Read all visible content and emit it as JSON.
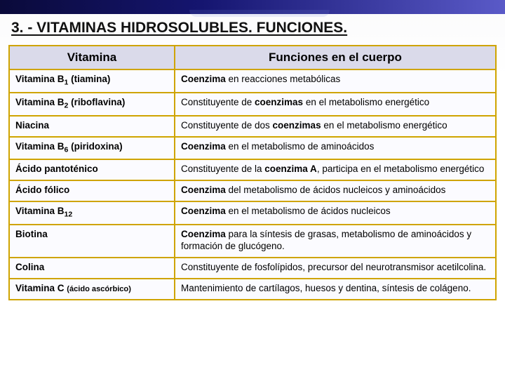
{
  "header": {
    "title": "3. - VITAMINAS HIDROSOLUBLES. FUNCIONES."
  },
  "table": {
    "columns": {
      "vitamin": "Vitamina",
      "function": "Funciones en el cuerpo"
    },
    "rows": [
      {
        "vit_pre": "Vitamina B",
        "vit_sub": "1",
        "vit_post": " (tiamina)",
        "fun_b1": "Coenzima",
        "fun_t1": " en reacciones metabólicas"
      },
      {
        "vit_pre": "Vitamina B",
        "vit_sub": "2",
        "vit_post": " (riboflavina)",
        "fun_t1": "Constituyente de ",
        "fun_b1": "coenzimas",
        "fun_t2": " en el metabolismo energético"
      },
      {
        "vit_pre": "Niacina",
        "fun_t1": "Constituyente de dos ",
        "fun_b1": "coenzimas",
        "fun_t2": " en el metabolismo energético"
      },
      {
        "vit_pre": "Vitamina B",
        "vit_sub": "6",
        "vit_post": " (piridoxina)",
        "fun_b1": "Coenzima",
        "fun_t1": " en el metabolismo de aminoácidos"
      },
      {
        "vit_pre": "Ácido pantoténico",
        "fun_t1": "Constituyente de la ",
        "fun_b1": "coenzima A",
        "fun_t2": ", participa en el metabolismo energético"
      },
      {
        "vit_pre": "Ácido fólico",
        "fun_b1": "Coenzima",
        "fun_t1": " del metabolismo de ácidos nucleicos y aminoácidos"
      },
      {
        "vit_pre": "Vitamina B",
        "vit_sub": "12",
        "fun_b1": "Coenzima",
        "fun_t1": " en el metabolismo de ácidos nucleicos"
      },
      {
        "vit_pre": "Biotina",
        "fun_b1": "Coenzima",
        "fun_t1": " para la síntesis de grasas, metabolismo de aminoácidos y formación de glucógeno."
      },
      {
        "vit_pre": "Colina",
        "fun_t1": "Constituyente de fosfolípidos, precursor del neurotransmisor acetilcolina."
      },
      {
        "vit_pre": "Vitamina C ",
        "vit_small": "(ácido ascórbico)",
        "fun_t1": "Mantenimiento de cartílagos, huesos y dentina, síntesis de colágeno."
      }
    ],
    "border_color": "#cfa400",
    "header_bg": "#dadaea"
  }
}
